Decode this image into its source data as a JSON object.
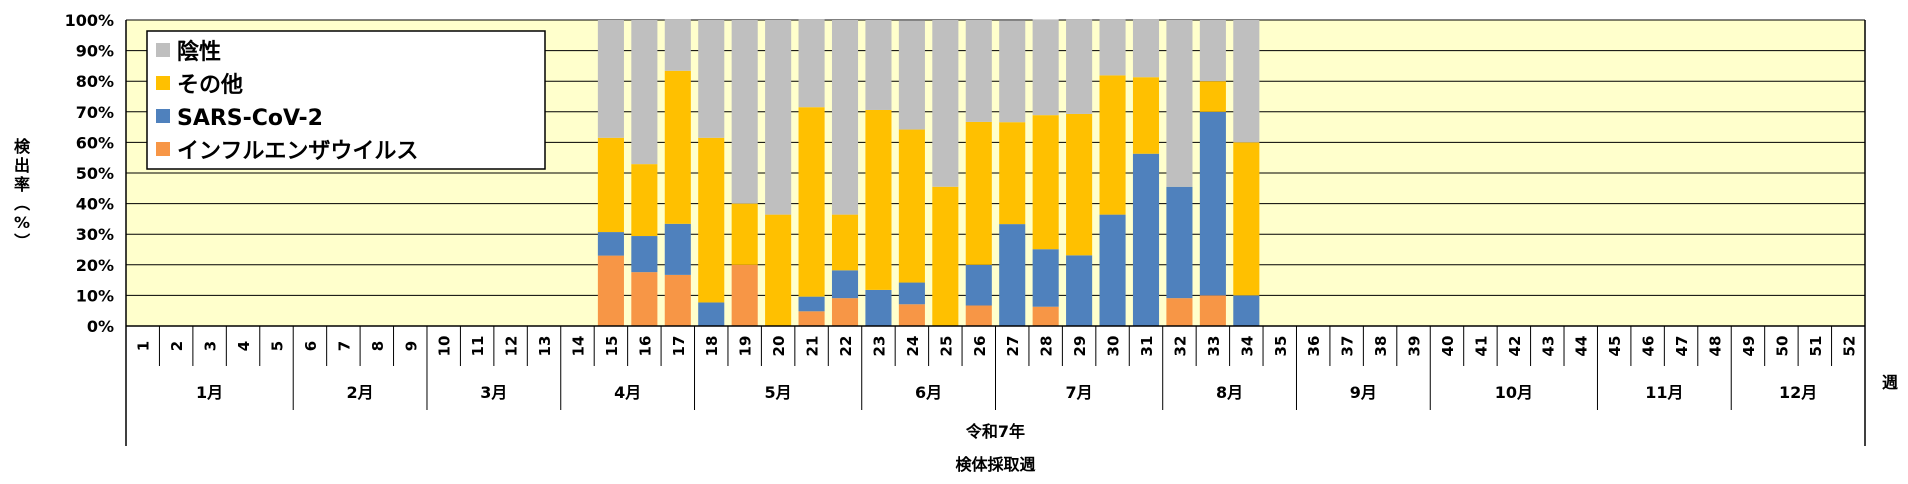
{
  "chart_data": {
    "type": "bar",
    "stacked": true,
    "ylabel": "検出率（%）",
    "xlabel_era": "令和7年",
    "xlabel": "検体採取週",
    "week_unit": "週",
    "ylim": [
      0,
      100
    ],
    "yticks": [
      "0%",
      "10%",
      "20%",
      "30%",
      "40%",
      "50%",
      "60%",
      "70%",
      "80%",
      "90%",
      "100%"
    ],
    "plot_background": "#ffffcc",
    "grid": true,
    "legend_position": "top-left",
    "weeks": [
      "1",
      "2",
      "3",
      "4",
      "5",
      "6",
      "7",
      "8",
      "9",
      "10",
      "11",
      "12",
      "13",
      "14",
      "15",
      "16",
      "17",
      "18",
      "19",
      "20",
      "21",
      "22",
      "23",
      "24",
      "25",
      "26",
      "27",
      "28",
      "29",
      "30",
      "31",
      "32",
      "33",
      "34",
      "35",
      "36",
      "37",
      "38",
      "39",
      "40",
      "41",
      "42",
      "43",
      "44",
      "45",
      "46",
      "47",
      "48",
      "49",
      "50",
      "51",
      "52"
    ],
    "months": [
      {
        "label": "1月",
        "first_week": 1,
        "last_week": 5
      },
      {
        "label": "2月",
        "first_week": 6,
        "last_week": 9
      },
      {
        "label": "3月",
        "first_week": 10,
        "last_week": 13
      },
      {
        "label": "4月",
        "first_week": 14,
        "last_week": 17
      },
      {
        "label": "5月",
        "first_week": 18,
        "last_week": 22
      },
      {
        "label": "6月",
        "first_week": 23,
        "last_week": 26
      },
      {
        "label": "7月",
        "first_week": 27,
        "last_week": 31
      },
      {
        "label": "8月",
        "first_week": 32,
        "last_week": 35
      },
      {
        "label": "9月",
        "first_week": 36,
        "last_week": 39
      },
      {
        "label": "10月",
        "first_week": 40,
        "last_week": 44
      },
      {
        "label": "11月",
        "first_week": 45,
        "last_week": 48
      },
      {
        "label": "12月",
        "first_week": 49,
        "last_week": 52
      }
    ],
    "series": [
      {
        "name": "インフルエンザウイルス",
        "color": "#f79646",
        "values": [
          null,
          null,
          null,
          null,
          null,
          null,
          null,
          null,
          null,
          null,
          null,
          null,
          null,
          null,
          23,
          17.6,
          16.7,
          0,
          20,
          0,
          4.8,
          9.1,
          0,
          7.1,
          0,
          6.7,
          0,
          6.3,
          0,
          0,
          0,
          9.1,
          10,
          0,
          null,
          null,
          null,
          null,
          null,
          null,
          null,
          null,
          null,
          null,
          null,
          null,
          null,
          null,
          null,
          null,
          null,
          null
        ]
      },
      {
        "name": "SARS-CoV-2",
        "color": "#4f81bd",
        "values": [
          null,
          null,
          null,
          null,
          null,
          null,
          null,
          null,
          null,
          null,
          null,
          null,
          null,
          null,
          7.7,
          11.8,
          16.7,
          7.7,
          0,
          0,
          4.8,
          9.1,
          11.8,
          7.1,
          0,
          13.3,
          33.3,
          18.8,
          23.1,
          36.4,
          56.3,
          36.4,
          60,
          10,
          null,
          null,
          null,
          null,
          null,
          null,
          null,
          null,
          null,
          null,
          null,
          null,
          null,
          null,
          null,
          null,
          null,
          null
        ]
      },
      {
        "name": "その他",
        "color": "#ffc000",
        "values": [
          null,
          null,
          null,
          null,
          null,
          null,
          null,
          null,
          null,
          null,
          null,
          null,
          null,
          null,
          30.8,
          23.5,
          50,
          53.8,
          20,
          36.4,
          61.9,
          18.2,
          58.8,
          50,
          45.5,
          46.7,
          33.3,
          43.8,
          46.2,
          45.5,
          25,
          0,
          10,
          50,
          null,
          null,
          null,
          null,
          null,
          null,
          null,
          null,
          null,
          null,
          null,
          null,
          null,
          null,
          null,
          null,
          null,
          null
        ]
      },
      {
        "name": "陰性",
        "color": "#bfbfbf",
        "values": [
          null,
          null,
          null,
          null,
          null,
          null,
          null,
          null,
          null,
          null,
          null,
          null,
          null,
          null,
          38.5,
          47.1,
          16.7,
          38.5,
          60,
          63.6,
          28.6,
          63.6,
          29.4,
          35.7,
          54.5,
          33.3,
          33.3,
          31.3,
          30.8,
          18.2,
          18.8,
          54.5,
          20,
          40,
          null,
          null,
          null,
          null,
          null,
          null,
          null,
          null,
          null,
          null,
          null,
          null,
          null,
          null,
          null,
          null,
          null,
          null
        ]
      }
    ],
    "legend": [
      "陰性",
      "その他",
      "SARS-CoV-2",
      "インフルエンザウイルス"
    ]
  }
}
